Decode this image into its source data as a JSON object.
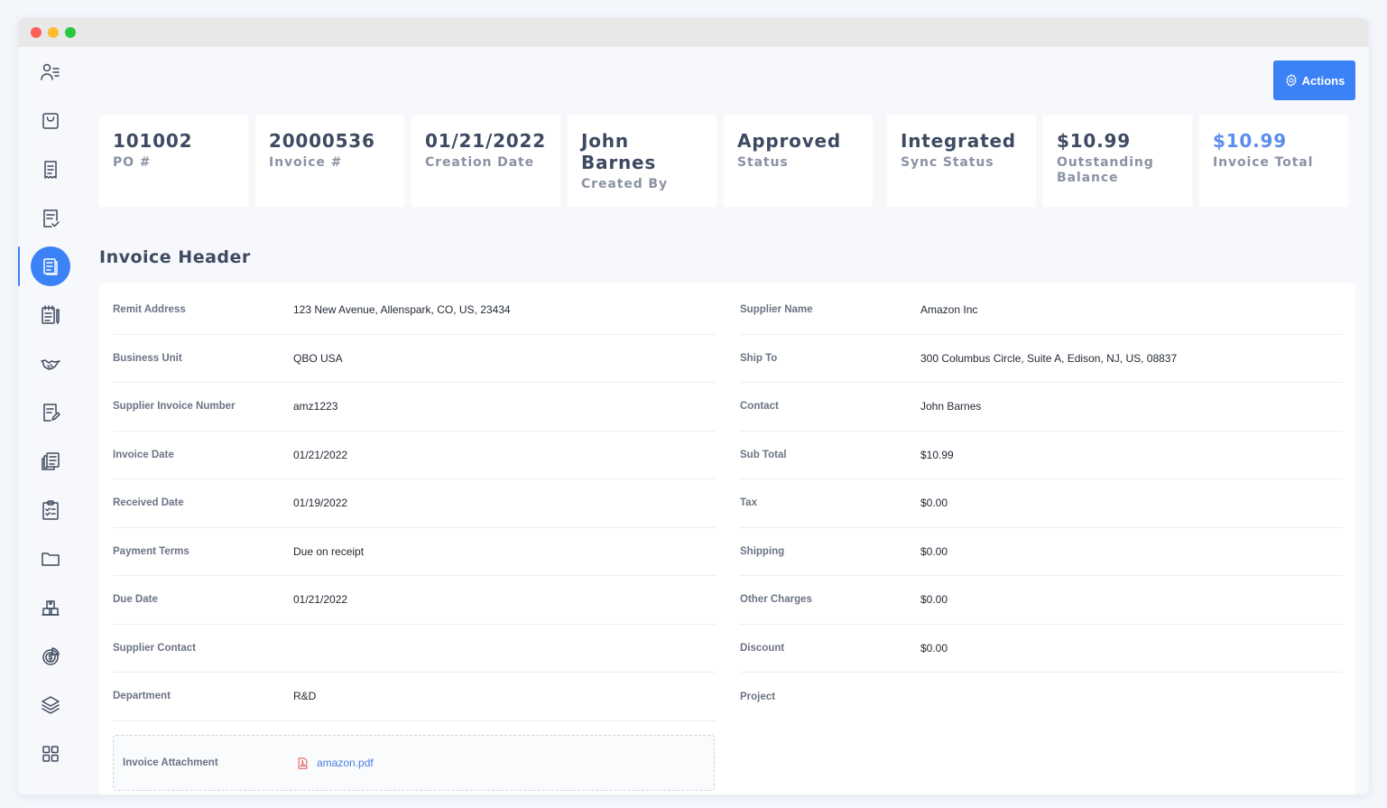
{
  "window": {
    "controls": [
      "close",
      "minimize",
      "maximize"
    ]
  },
  "sidebar": {
    "items": [
      {
        "icon": "user-list-icon",
        "active": false
      },
      {
        "icon": "bag-icon",
        "active": false
      },
      {
        "icon": "receipt-icon",
        "active": false
      },
      {
        "icon": "document-check-icon",
        "active": false
      },
      {
        "icon": "invoice-icon",
        "active": true
      },
      {
        "icon": "notebook-pen-icon",
        "active": false
      },
      {
        "icon": "handshake-icon",
        "active": false
      },
      {
        "icon": "document-edit-icon",
        "active": false
      },
      {
        "icon": "documents-stack-icon",
        "active": false
      },
      {
        "icon": "clipboard-check-icon",
        "active": false
      },
      {
        "icon": "folder-icon",
        "active": false
      },
      {
        "icon": "warehouse-icon",
        "active": false
      },
      {
        "icon": "dollar-chart-icon",
        "active": false
      },
      {
        "icon": "layers-icon",
        "active": false
      },
      {
        "icon": "grid-icon",
        "active": false
      }
    ]
  },
  "header": {
    "actions_label": "Actions"
  },
  "stats": [
    {
      "value": "101002",
      "label": "PO #"
    },
    {
      "value": "20000536",
      "label": "Invoice #"
    },
    {
      "value": "01/21/2022",
      "label": "Creation Date"
    },
    {
      "value": "John Barnes",
      "label": "Created By"
    },
    {
      "value": "Approved",
      "label": "Status"
    },
    {
      "value": "Integrated",
      "label": "Sync Status"
    },
    {
      "value": "$10.99",
      "label": "Outstanding Balance"
    },
    {
      "value": "$10.99",
      "label": "Invoice Total"
    }
  ],
  "colors": {
    "accent": "#3b82f6",
    "highlight_value": "#5b8def"
  },
  "section_title": "Invoice Header",
  "left_fields": [
    {
      "label": "Remit Address",
      "value": "123 New Avenue, Allenspark, CO, US, 23434"
    },
    {
      "label": "Business Unit",
      "value": "QBO USA"
    },
    {
      "label": "Supplier Invoice Number",
      "value": "amz1223"
    },
    {
      "label": "Invoice Date",
      "value": "01/21/2022"
    },
    {
      "label": "Received Date",
      "value": "01/19/2022"
    },
    {
      "label": "Payment Terms",
      "value": "Due on receipt"
    },
    {
      "label": "Due Date",
      "value": "01/21/2022"
    },
    {
      "label": "Supplier Contact",
      "value": ""
    },
    {
      "label": "Department",
      "value": "R&D"
    }
  ],
  "right_fields": [
    {
      "label": "Supplier Name",
      "value": "Amazon Inc"
    },
    {
      "label": "Ship To",
      "value": "300 Columbus Circle, Suite A, Edison, NJ, US, 08837"
    },
    {
      "label": "Contact",
      "value": "John Barnes"
    },
    {
      "label": "Sub Total",
      "value": "$10.99"
    },
    {
      "label": "Tax",
      "value": "$0.00"
    },
    {
      "label": "Shipping",
      "value": "$0.00"
    },
    {
      "label": "Other Charges",
      "value": "$0.00"
    },
    {
      "label": "Discount",
      "value": "$0.00"
    },
    {
      "label": "Project",
      "value": ""
    }
  ],
  "attachment": {
    "label": "Invoice Attachment",
    "file_name": "amazon.pdf",
    "icon": "pdf-icon"
  }
}
